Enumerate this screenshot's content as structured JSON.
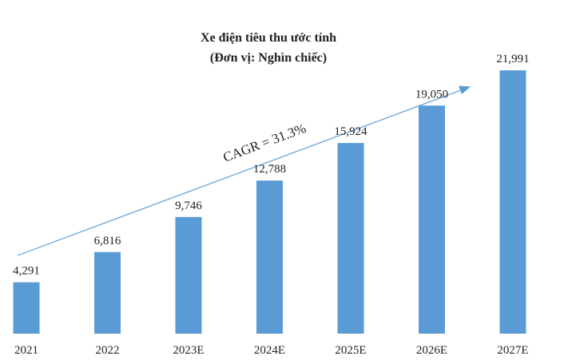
{
  "chart_data": {
    "type": "bar",
    "title": "Xe điện tiêu thu ước tính",
    "subtitle": "(Đơn vị: Nghìn chiếc)",
    "categories": [
      "2021",
      "2022",
      "2023E",
      "2024E",
      "2025E",
      "2026E",
      "2027E"
    ],
    "values": [
      4291,
      6816,
      9746,
      12788,
      15924,
      19050,
      21991
    ],
    "value_labels": [
      "4,291",
      "6,816",
      "9,746",
      "12,788",
      "15,924",
      "19,050",
      "21,991"
    ],
    "ylim": [
      0,
      24000
    ],
    "bar_color": "#5b9bd5",
    "grid": false,
    "annotation": {
      "text": "CAGR = 31.3%",
      "arrow_color": "#5b9bd5"
    }
  }
}
